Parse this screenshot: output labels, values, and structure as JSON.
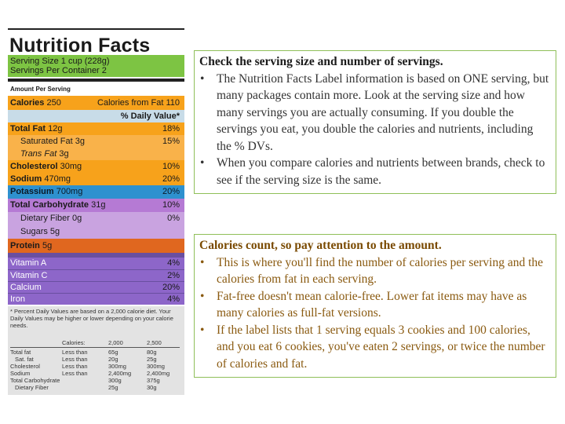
{
  "label": {
    "title": "Nutrition Facts",
    "serving_size": "Serving Size 1 cup (228g)",
    "servings_per_container": "Servings Per Container 2",
    "amount_per_serving": "Amount Per Serving",
    "calories_label": "Calories",
    "calories_value": "250",
    "calories_from_fat": "Calories from Fat 110",
    "daily_value_header": "% Daily Value*",
    "nutrients": [
      {
        "name": "Total Fat",
        "amount": "12g",
        "pct": "18%"
      },
      {
        "name": "Saturated Fat",
        "amount": "3g",
        "pct": "15%"
      },
      {
        "name": "Trans Fat",
        "amount": "3g",
        "pct": ""
      },
      {
        "name": "Cholesterol",
        "amount": "30mg",
        "pct": "10%"
      },
      {
        "name": "Sodium",
        "amount": "470mg",
        "pct": "20%"
      },
      {
        "name": "Potassium",
        "amount": "700mg",
        "pct": "20%"
      },
      {
        "name": "Total Carbohydrate",
        "amount": "31g",
        "pct": "10%"
      },
      {
        "name": "Dietary Fiber",
        "amount": "0g",
        "pct": "0%"
      },
      {
        "name": "Sugars",
        "amount": "5g",
        "pct": ""
      },
      {
        "name": "Protein",
        "amount": "5g",
        "pct": ""
      }
    ],
    "vitamins": [
      {
        "name": "Vitamin A",
        "pct": "4%"
      },
      {
        "name": "Vitamin C",
        "pct": "2%"
      },
      {
        "name": "Calcium",
        "pct": "20%"
      },
      {
        "name": "Iron",
        "pct": "4%"
      }
    ],
    "footnote": "* Percent Daily Values are based on a 2,000 calorie diet. Your Daily Values may be higher or lower depending on your calorie needs.",
    "footer_header": [
      "",
      "Calories:",
      "2,000",
      "2,500"
    ],
    "footer_rows": [
      [
        "Total fat",
        "Less than",
        "65g",
        "80g"
      ],
      [
        "Sat. fat",
        "Less than",
        "20g",
        "25g"
      ],
      [
        "Cholesterol",
        "Less than",
        "300mg",
        "300mg"
      ],
      [
        "Sodium",
        "Less than",
        "2,400mg",
        "2,400mg"
      ],
      [
        "Total Carbohydrate",
        "",
        "300g",
        "375g"
      ],
      [
        "Dietary Fiber",
        "",
        "25g",
        "30g"
      ]
    ]
  },
  "box1": {
    "heading": "Check the serving size and number of servings.",
    "bullets": [
      "The Nutrition Facts Label information is based on ONE serving, but many packages contain more. Look at the serving size and how many servings you are actually consuming. If you double the servings you eat, you double the calories and nutrients, including the % DVs.",
      "When you compare calories and nutrients between brands, check to see if the serving size is the same."
    ]
  },
  "box2": {
    "heading": "Calories count, so pay attention to the amount.",
    "bullets": [
      "This is where you'll find the number of calories per serving and the calories from fat in each serving.",
      "Fat-free doesn't mean calorie-free. Lower fat items may have as many calories as full-fat versions.",
      "If the label lists that 1 serving equals 3 cookies and 100 calories, and you eat 6 cookies, you've eaten 2 servings, or twice the number of calories and fat."
    ]
  }
}
